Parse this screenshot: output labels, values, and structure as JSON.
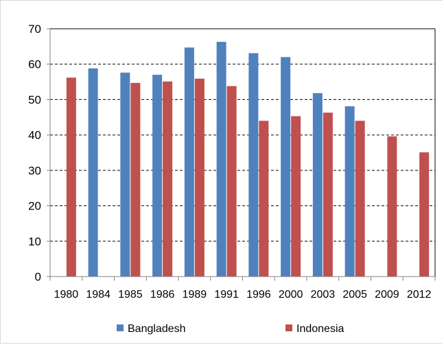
{
  "chart_data": {
    "type": "bar",
    "categories": [
      "1980",
      "1984",
      "1985",
      "1986",
      "1989",
      "1991",
      "1996",
      "2000",
      "2003",
      "2005",
      "2009",
      "2012"
    ],
    "series": [
      {
        "name": "Bangladesh",
        "color": "#4f81bd",
        "values": [
          null,
          58.8,
          57.6,
          57.0,
          64.7,
          66.3,
          63.1,
          62.0,
          51.8,
          48.1,
          null,
          null
        ]
      },
      {
        "name": "Indonesia",
        "color": "#c0504d",
        "values": [
          56.2,
          null,
          54.7,
          55.1,
          55.9,
          53.8,
          44.0,
          45.3,
          46.3,
          44.0,
          39.6,
          35.1
        ]
      }
    ],
    "title": "",
    "xlabel": "",
    "ylabel": "",
    "ylim": [
      0,
      70
    ],
    "yticks": [
      "0",
      "10",
      "20",
      "30",
      "40",
      "50",
      "60",
      "70"
    ],
    "grid": "horizontal dashed",
    "legend_position": "bottom"
  }
}
